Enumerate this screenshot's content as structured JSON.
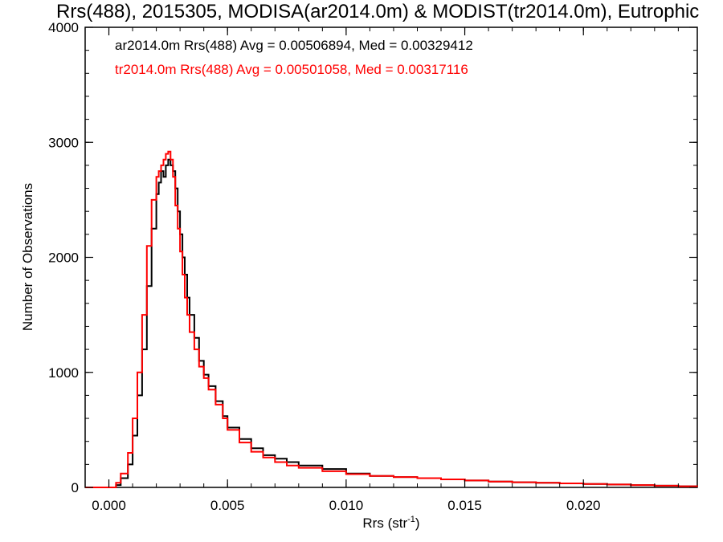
{
  "chart_data": {
    "type": "line",
    "title": "Rrs(488), 2015305, MODISA(ar2014.0m) & MODIST(tr2014.0m), Eutrophic",
    "xlabel": "Rrs (str",
    "xlabel_sup": "-1",
    "xlabel_suffix": ")",
    "ylabel": "Number of Observations",
    "xlim": [
      -0.001,
      0.0248
    ],
    "ylim": [
      0,
      4000
    ],
    "x_ticks": [
      0.0,
      0.005,
      0.01,
      0.015,
      0.02
    ],
    "x_tick_labels": [
      "0.000",
      "0.005",
      "0.010",
      "0.015",
      "0.020"
    ],
    "y_ticks": [
      0,
      1000,
      2000,
      3000,
      4000
    ],
    "y_tick_labels": [
      "0",
      "1000",
      "2000",
      "3000",
      "4000"
    ],
    "grid": false,
    "legend_placement": "top-left",
    "series": [
      {
        "name": "ar2014.0m Rrs(488) Avg = 0.00506894, Med = 0.00329412",
        "color": "#000000",
        "x": [
          -0.001,
          0.0,
          0.0003,
          0.0005,
          0.0008,
          0.001,
          0.0012,
          0.0014,
          0.0016,
          0.0018,
          0.002,
          0.0021,
          0.0022,
          0.0023,
          0.0024,
          0.0025,
          0.0026,
          0.0027,
          0.0028,
          0.0029,
          0.003,
          0.0031,
          0.0032,
          0.0033,
          0.0034,
          0.0036,
          0.0038,
          0.004,
          0.0042,
          0.0045,
          0.0048,
          0.005,
          0.0055,
          0.006,
          0.0065,
          0.007,
          0.0075,
          0.008,
          0.009,
          0.01,
          0.011,
          0.012,
          0.013,
          0.014,
          0.015,
          0.016,
          0.017,
          0.018,
          0.019,
          0.02,
          0.021,
          0.022,
          0.023,
          0.024,
          0.0248
        ],
        "values": [
          0,
          0,
          20,
          80,
          200,
          450,
          800,
          1200,
          1750,
          2250,
          2550,
          2650,
          2750,
          2700,
          2800,
          2850,
          2800,
          2750,
          2600,
          2400,
          2200,
          2000,
          1850,
          1650,
          1500,
          1300,
          1100,
          980,
          880,
          750,
          620,
          520,
          420,
          340,
          280,
          250,
          220,
          190,
          160,
          120,
          100,
          90,
          80,
          70,
          60,
          50,
          45,
          40,
          35,
          30,
          25,
          20,
          15,
          10,
          8
        ]
      },
      {
        "name": "tr2014.0m Rrs(488) Avg = 0.00501058, Med = 0.00317116",
        "color": "#ff0000",
        "x": [
          -0.001,
          0.0,
          0.0003,
          0.0005,
          0.0008,
          0.001,
          0.0012,
          0.0014,
          0.0016,
          0.0018,
          0.002,
          0.0021,
          0.0022,
          0.0023,
          0.0024,
          0.0025,
          0.0026,
          0.0027,
          0.0028,
          0.0029,
          0.003,
          0.0031,
          0.0032,
          0.0033,
          0.0034,
          0.0036,
          0.0038,
          0.004,
          0.0042,
          0.0045,
          0.0048,
          0.005,
          0.0055,
          0.006,
          0.0065,
          0.007,
          0.0075,
          0.008,
          0.009,
          0.01,
          0.011,
          0.012,
          0.013,
          0.014,
          0.015,
          0.016,
          0.017,
          0.018,
          0.019,
          0.02,
          0.021,
          0.022,
          0.023,
          0.024,
          0.0248
        ],
        "values": [
          0,
          0,
          40,
          120,
          300,
          600,
          1000,
          1500,
          2100,
          2500,
          2700,
          2750,
          2800,
          2850,
          2900,
          2920,
          2850,
          2700,
          2450,
          2250,
          2050,
          1850,
          1650,
          1500,
          1350,
          1200,
          1050,
          950,
          850,
          720,
          600,
          500,
          390,
          310,
          260,
          220,
          190,
          170,
          140,
          115,
          100,
          90,
          80,
          70,
          60,
          50,
          45,
          40,
          35,
          30,
          25,
          20,
          15,
          10,
          8
        ]
      }
    ]
  }
}
